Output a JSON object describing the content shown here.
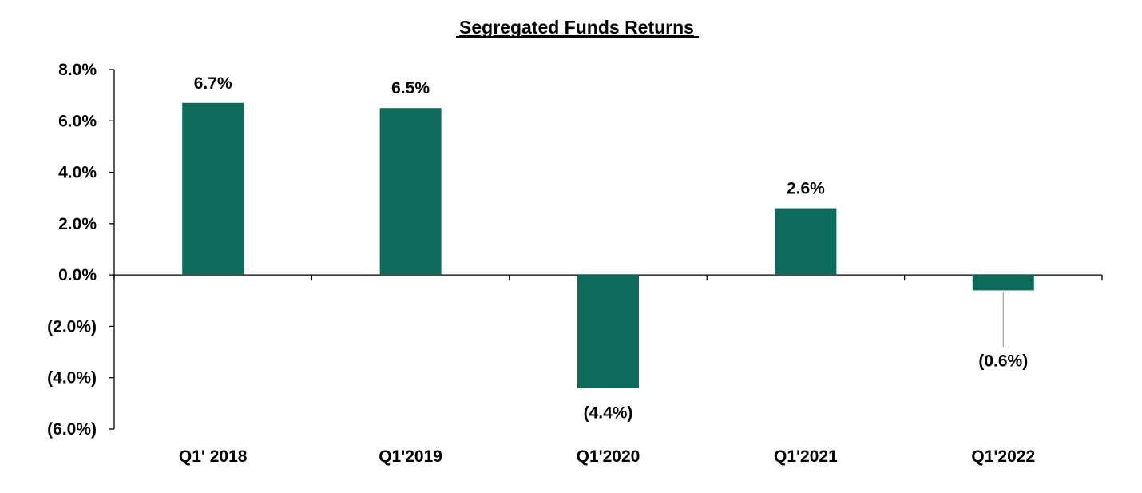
{
  "chart_data": {
    "type": "bar",
    "title": "Segregated Funds Returns",
    "xlabel": "",
    "ylabel": "",
    "categories": [
      "Q1' 2018",
      "Q1'2019",
      "Q1'2020",
      "Q1'2021",
      "Q1'2022"
    ],
    "values": [
      6.7,
      6.5,
      -4.4,
      2.6,
      -0.6
    ],
    "value_labels": [
      "6.7%",
      "6.5%",
      "(4.4%)",
      "2.6%",
      "(0.6%)"
    ],
    "ylim": [
      -6.0,
      8.0
    ],
    "y_ticks": [
      8.0,
      6.0,
      4.0,
      2.0,
      0.0,
      -2.0,
      -4.0,
      -6.0
    ],
    "y_tick_labels": [
      "8.0%",
      "6.0%",
      "4.0%",
      "2.0%",
      "0.0%",
      "(2.0%)",
      "(4.0%)",
      "(6.0%)"
    ],
    "grid": false,
    "legend": "none",
    "bar_color": "#0e6b5c",
    "axis_color": "#000000",
    "leader_line_color": "#a6a6a6"
  }
}
